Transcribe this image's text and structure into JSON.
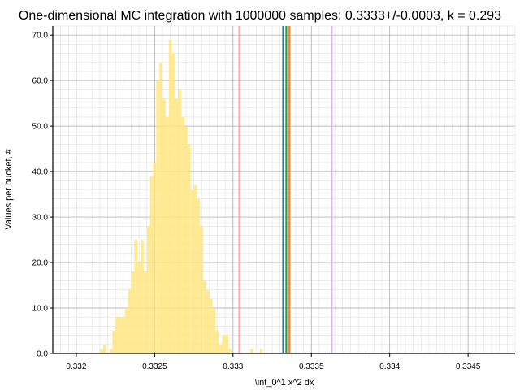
{
  "chart_data": {
    "type": "bar",
    "title": "One-dimensional MC integration with 1000000 samples: 0.3333+/-0.0003, k = 0.293",
    "xlabel": "\\int_0^1 x^2 dx",
    "ylabel": "Values per bucket, #",
    "xlim": [
      0.33185,
      0.3348
    ],
    "ylim": [
      0,
      72
    ],
    "grid": true,
    "bar_color": "#ffe680",
    "x_ticks": [
      0.332,
      0.3325,
      0.333,
      0.3335,
      0.334,
      0.3345
    ],
    "x_tick_labels": [
      "0.332",
      "0.3325",
      "0.333",
      "0.3335",
      "0.334",
      "0.3345"
    ],
    "y_ticks": [
      0,
      10,
      20,
      30,
      40,
      50,
      60,
      70
    ],
    "y_tick_labels": [
      "0.0",
      "10.0",
      "20.0",
      "30.0",
      "40.0",
      "50.0",
      "60.0",
      "70.0"
    ],
    "bin_start": 0.33185,
    "bin_width": 2e-05,
    "values": [
      0,
      0,
      0,
      0,
      0,
      0,
      0,
      0,
      0,
      0,
      0,
      0,
      0,
      0,
      0,
      1,
      2,
      0,
      1,
      5,
      8,
      8,
      8,
      10,
      14,
      18,
      25,
      20,
      25,
      18,
      28,
      39,
      42,
      60,
      64,
      56,
      52,
      69,
      66,
      56,
      58,
      52,
      50,
      46,
      36,
      37,
      34,
      28,
      16,
      14,
      12,
      10,
      5,
      2,
      4,
      4,
      1,
      0,
      0,
      0,
      0,
      0,
      0,
      1,
      0,
      0,
      1,
      0,
      0,
      0,
      0,
      0,
      0,
      0,
      0,
      0,
      0,
      0
    ],
    "vlines": [
      {
        "x": 0.33304,
        "color": "#ffaaaa"
      },
      {
        "x": 0.33332,
        "color": "#1f77b4"
      },
      {
        "x": 0.33334,
        "color": "#2ca02c"
      },
      {
        "x": 0.33336,
        "color": "#ff7f0e"
      },
      {
        "x": 0.33363,
        "color": "#d9b3ff"
      }
    ]
  }
}
